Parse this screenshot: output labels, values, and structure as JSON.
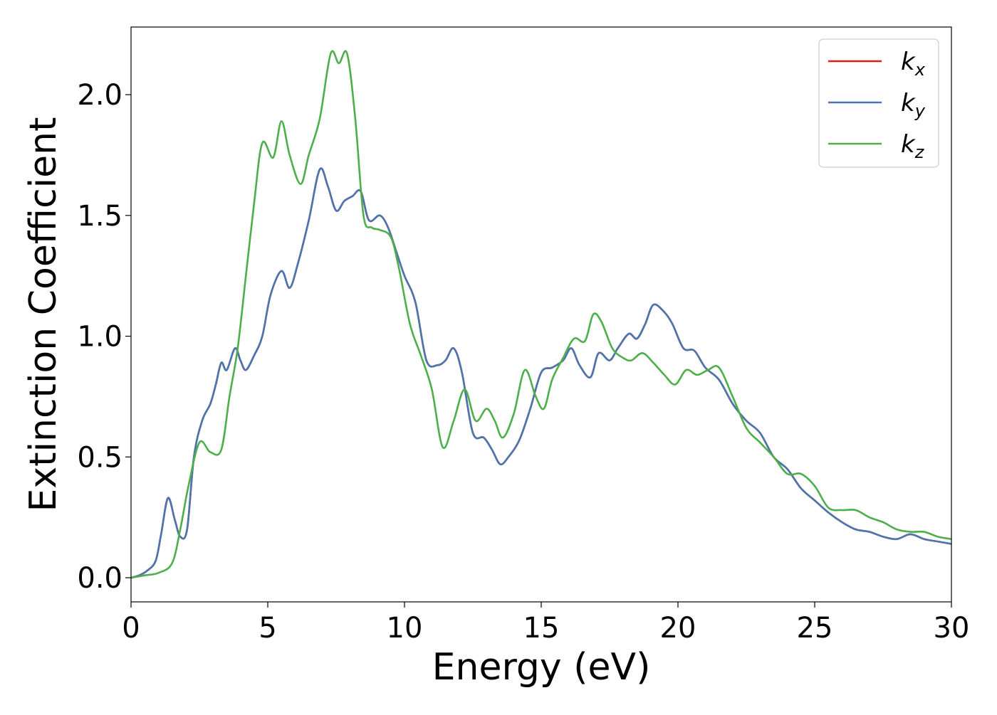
{
  "chart_data": {
    "type": "line",
    "title": "",
    "xlabel": "Energy (eV)",
    "ylabel": "Extinction Coefficient",
    "xlim": [
      0,
      30
    ],
    "ylim": [
      -0.1,
      2.28
    ],
    "xticks": [
      0,
      5,
      10,
      15,
      20,
      25,
      30
    ],
    "xtick_labels": [
      "0",
      "5",
      "10",
      "15",
      "20",
      "25",
      "30"
    ],
    "yticks": [
      0.0,
      0.5,
      1.0,
      1.5,
      2.0
    ],
    "ytick_labels": [
      "0.0",
      "0.5",
      "1.0",
      "1.5",
      "2.0"
    ],
    "grid": false,
    "legend": {
      "position": "top-right",
      "entries": [
        {
          "base": "k",
          "sub": "x",
          "color": "#e41a1c"
        },
        {
          "base": "k",
          "sub": "y",
          "color": "#4a76b0"
        },
        {
          "base": "k",
          "sub": "z",
          "color": "#4daf4a"
        }
      ]
    },
    "series": [
      {
        "name": "k_x",
        "color": "#e41a1c",
        "x": [
          0,
          0.3,
          0.6,
          0.9,
          1.1,
          1.35,
          1.6,
          1.8,
          2.05,
          2.3,
          2.6,
          2.9,
          3.1,
          3.3,
          3.5,
          3.8,
          4.0,
          4.2,
          4.5,
          4.8,
          5.1,
          5.5,
          5.8,
          6.1,
          6.5,
          6.9,
          7.2,
          7.5,
          7.8,
          8.1,
          8.4,
          8.7,
          9.1,
          9.4,
          9.7,
          10.0,
          10.4,
          10.8,
          11.2,
          11.5,
          11.8,
          12.1,
          12.5,
          12.9,
          13.2,
          13.5,
          13.8,
          14.2,
          14.6,
          15.0,
          15.4,
          15.8,
          16.1,
          16.4,
          16.8,
          17.1,
          17.5,
          17.8,
          18.2,
          18.5,
          18.8,
          19.1,
          19.5,
          19.8,
          20.2,
          20.6,
          21.0,
          21.5,
          22.0,
          22.5,
          23.0,
          23.5,
          24.0,
          24.5,
          25.0,
          25.5,
          26.0,
          26.5,
          27.0,
          27.5,
          28.0,
          28.5,
          29.0,
          29.5,
          30.0
        ],
        "y": [
          0.0,
          0.01,
          0.03,
          0.07,
          0.18,
          0.33,
          0.24,
          0.17,
          0.2,
          0.5,
          0.65,
          0.72,
          0.8,
          0.89,
          0.86,
          0.95,
          0.9,
          0.86,
          0.92,
          1.0,
          1.17,
          1.27,
          1.2,
          1.3,
          1.48,
          1.69,
          1.62,
          1.52,
          1.56,
          1.58,
          1.6,
          1.48,
          1.5,
          1.45,
          1.35,
          1.25,
          1.14,
          0.9,
          0.88,
          0.9,
          0.95,
          0.85,
          0.6,
          0.58,
          0.53,
          0.47,
          0.5,
          0.57,
          0.7,
          0.85,
          0.87,
          0.9,
          0.95,
          0.88,
          0.83,
          0.93,
          0.9,
          0.95,
          1.01,
          0.99,
          1.05,
          1.13,
          1.1,
          1.05,
          0.95,
          0.94,
          0.87,
          0.82,
          0.72,
          0.65,
          0.6,
          0.5,
          0.45,
          0.37,
          0.32,
          0.27,
          0.23,
          0.2,
          0.19,
          0.17,
          0.16,
          0.18,
          0.16,
          0.15,
          0.14
        ]
      },
      {
        "name": "k_y",
        "color": "#4a76b0",
        "x": [
          0,
          0.3,
          0.6,
          0.9,
          1.1,
          1.35,
          1.6,
          1.8,
          2.05,
          2.3,
          2.6,
          2.9,
          3.1,
          3.3,
          3.5,
          3.8,
          4.0,
          4.2,
          4.5,
          4.8,
          5.1,
          5.5,
          5.8,
          6.1,
          6.5,
          6.9,
          7.2,
          7.5,
          7.8,
          8.1,
          8.4,
          8.7,
          9.1,
          9.4,
          9.7,
          10.0,
          10.4,
          10.8,
          11.2,
          11.5,
          11.8,
          12.1,
          12.5,
          12.9,
          13.2,
          13.5,
          13.8,
          14.2,
          14.6,
          15.0,
          15.4,
          15.8,
          16.1,
          16.4,
          16.8,
          17.1,
          17.5,
          17.8,
          18.2,
          18.5,
          18.8,
          19.1,
          19.5,
          19.8,
          20.2,
          20.6,
          21.0,
          21.5,
          22.0,
          22.5,
          23.0,
          23.5,
          24.0,
          24.5,
          25.0,
          25.5,
          26.0,
          26.5,
          27.0,
          27.5,
          28.0,
          28.5,
          29.0,
          29.5,
          30.0
        ],
        "y": [
          0.0,
          0.01,
          0.03,
          0.07,
          0.18,
          0.33,
          0.24,
          0.17,
          0.2,
          0.5,
          0.65,
          0.72,
          0.8,
          0.89,
          0.86,
          0.95,
          0.9,
          0.86,
          0.92,
          1.0,
          1.17,
          1.27,
          1.2,
          1.3,
          1.48,
          1.69,
          1.62,
          1.52,
          1.56,
          1.58,
          1.6,
          1.48,
          1.5,
          1.45,
          1.35,
          1.25,
          1.14,
          0.9,
          0.88,
          0.9,
          0.95,
          0.85,
          0.6,
          0.58,
          0.53,
          0.47,
          0.5,
          0.57,
          0.7,
          0.85,
          0.87,
          0.9,
          0.95,
          0.88,
          0.83,
          0.93,
          0.9,
          0.95,
          1.01,
          0.99,
          1.05,
          1.13,
          1.1,
          1.05,
          0.95,
          0.94,
          0.87,
          0.82,
          0.72,
          0.65,
          0.6,
          0.5,
          0.45,
          0.37,
          0.32,
          0.27,
          0.23,
          0.2,
          0.19,
          0.17,
          0.16,
          0.18,
          0.16,
          0.15,
          0.14
        ]
      },
      {
        "name": "k_z",
        "color": "#4daf4a",
        "x": [
          0,
          0.5,
          1.0,
          1.5,
          1.8,
          2.1,
          2.5,
          2.9,
          3.3,
          3.6,
          3.9,
          4.2,
          4.5,
          4.8,
          5.2,
          5.5,
          5.8,
          6.2,
          6.5,
          6.9,
          7.3,
          7.6,
          7.9,
          8.2,
          8.5,
          8.8,
          9.1,
          9.5,
          9.8,
          10.2,
          10.6,
          11.0,
          11.4,
          11.8,
          12.2,
          12.6,
          13.0,
          13.3,
          13.6,
          14.0,
          14.4,
          14.8,
          15.1,
          15.4,
          15.8,
          16.2,
          16.6,
          16.9,
          17.2,
          17.6,
          18.0,
          18.3,
          18.7,
          19.1,
          19.5,
          19.9,
          20.3,
          20.7,
          21.1,
          21.5,
          22.0,
          22.5,
          23.0,
          23.5,
          24.0,
          24.5,
          25.0,
          25.5,
          26.0,
          26.5,
          27.0,
          27.5,
          28.0,
          28.5,
          29.0,
          29.5,
          30.0
        ],
        "y": [
          0.0,
          0.01,
          0.02,
          0.06,
          0.2,
          0.38,
          0.56,
          0.52,
          0.53,
          0.75,
          0.95,
          1.25,
          1.55,
          1.8,
          1.74,
          1.89,
          1.75,
          1.63,
          1.75,
          1.9,
          2.17,
          2.13,
          2.17,
          1.9,
          1.5,
          1.45,
          1.44,
          1.41,
          1.28,
          1.05,
          0.92,
          0.78,
          0.54,
          0.65,
          0.78,
          0.65,
          0.7,
          0.65,
          0.58,
          0.68,
          0.86,
          0.75,
          0.7,
          0.82,
          0.91,
          0.99,
          0.98,
          1.09,
          1.06,
          0.95,
          0.91,
          0.9,
          0.93,
          0.89,
          0.84,
          0.8,
          0.86,
          0.84,
          0.86,
          0.87,
          0.75,
          0.62,
          0.56,
          0.5,
          0.43,
          0.43,
          0.38,
          0.29,
          0.28,
          0.28,
          0.25,
          0.23,
          0.2,
          0.19,
          0.19,
          0.17,
          0.16
        ]
      }
    ]
  }
}
